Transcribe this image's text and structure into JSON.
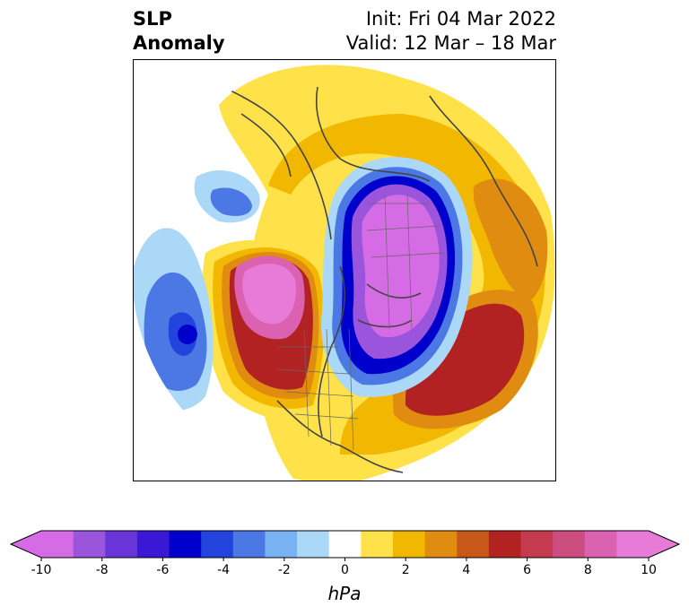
{
  "title": {
    "left_line1": "SLP",
    "left_line2": "Anomaly",
    "right_line1": "Init: Fri 04 Mar 2022",
    "right_line2": "Valid: 12 Mar – 18 Mar"
  },
  "colorbar": {
    "unit": "hPa",
    "min": -10,
    "max": 10,
    "extend": "both",
    "tick_labels": [
      "-10",
      "-8",
      "-6",
      "-4",
      "-2",
      "0",
      "2",
      "4",
      "6",
      "8",
      "10"
    ],
    "colors": [
      "#d66ce5",
      "#9b55dd",
      "#6a35d8",
      "#3a18d6",
      "#0000cc",
      "#2244dd",
      "#4c78e6",
      "#78b2f2",
      "#acd8f8",
      "#ffffff",
      "#ffe14a",
      "#f2b700",
      "#e08c10",
      "#c85818",
      "#b22222",
      "#c43a4e",
      "#cc4e80",
      "#da62b0",
      "#e87ad8"
    ],
    "under_color": "#d66ce5",
    "over_color": "#e87ad8"
  },
  "map": {
    "projection": "north-polar-stereographic",
    "field": "sea level pressure anomaly",
    "colors": {
      "neg_strong": "#d66ce5",
      "neg_purple": "#9b55dd",
      "neg_blue": "#0000cc",
      "neg_mid": "#4c78e6",
      "neg_light": "#acd8f8",
      "pos_yellow": "#ffe14a",
      "pos_gold": "#f2b700",
      "pos_orange": "#e08c10",
      "pos_red": "#b22222",
      "pos_pink": "#da62b0",
      "coast": "#444444"
    }
  }
}
